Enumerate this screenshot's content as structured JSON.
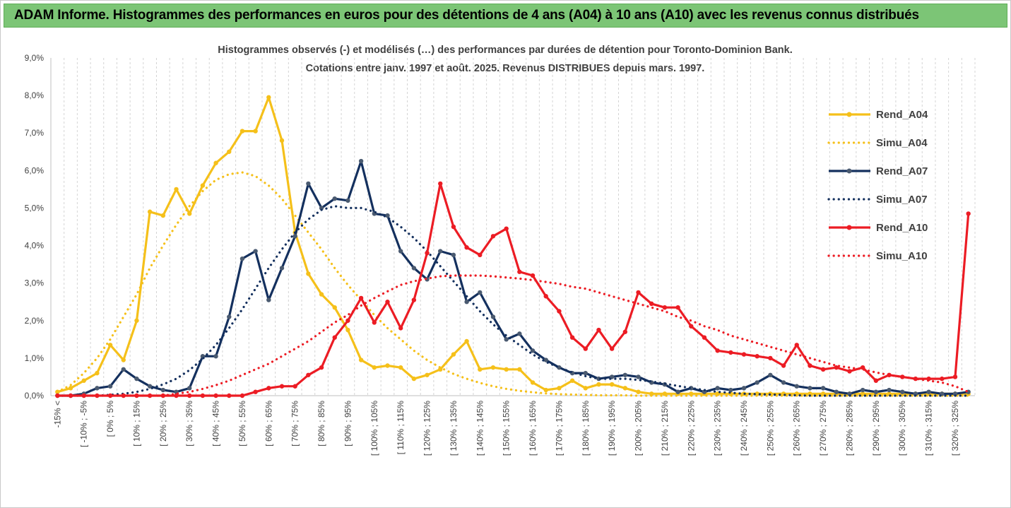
{
  "banner": {
    "title": "ADAM Informe. Histogrammes des performances en euros pour des détentions de 4 ans (A04) à 10 ans (A10) avec les revenus connus distribués"
  },
  "chart_data": {
    "type": "line",
    "subtitle_line1": "Histogrammes observés (-) et modélisés (…) des performances par durées de détention pour Toronto-Dominion Bank.",
    "subtitle_line2": "Cotations entre janv. 1997 et août. 2025. Revenus DISTRIBUES depuis mars. 1997.",
    "ylim": [
      0,
      9
    ],
    "y_unit": "%",
    "y_ticks": [
      "0,0%",
      "1,0%",
      "2,0%",
      "3,0%",
      "4,0%",
      "5,0%",
      "6,0%",
      "7,0%",
      "8,0%",
      "9,0%"
    ],
    "x_tick_labels": [
      "-15% <",
      "[ -10% ; -5%",
      "[ 0% ; 5%",
      "[ 10% ; 15%",
      "[ 20% ; 25%",
      "[ 30% ; 35%",
      "[ 40% ; 45%",
      "[ 50% ; 55%",
      "[ 60% ; 65%",
      "[ 70% ; 75%",
      "[ 80% ; 85%",
      "[ 90% ; 95%",
      "[ 100% ; 105%",
      "[ 110% ; 115%",
      "[ 120% ; 125%",
      "[ 130% ; 135%",
      "[ 140% ; 145%",
      "[ 150% ; 155%",
      "[ 160% ; 165%",
      "[ 170% ; 175%",
      "[ 180% ; 185%",
      "[ 190% ; 195%",
      "[ 200% ; 205%",
      "[ 210% ; 215%",
      "[ 220% ; 225%",
      "[ 230% ; 235%",
      "[ 240% ; 245%",
      "[ 250% ; 255%",
      "[ 260% ; 265%",
      "[ 270% ; 275%",
      "[ 280% ; 285%",
      "[ 290% ; 295%",
      "[ 300% ; 305%",
      "[ 310% ; 315%",
      "[ 320% ; 325%"
    ],
    "category_count": 70,
    "grid": "vertical dashed",
    "legend_position": "right",
    "series": [
      {
        "name": "Rend_A04",
        "style": "solid",
        "markers": true,
        "color": "#f5c01a",
        "values": [
          0.1,
          0.2,
          0.4,
          0.6,
          1.35,
          0.95,
          2.0,
          4.9,
          4.8,
          5.5,
          4.85,
          5.6,
          6.2,
          6.5,
          7.05,
          7.05,
          7.95,
          6.8,
          4.35,
          3.25,
          2.7,
          2.35,
          1.75,
          0.95,
          0.75,
          0.8,
          0.75,
          0.45,
          0.55,
          0.7,
          1.1,
          1.45,
          0.7,
          0.75,
          0.7,
          0.7,
          0.35,
          0.15,
          0.2,
          0.4,
          0.2,
          0.3,
          0.3,
          0.2,
          0.1,
          0.05,
          0.05,
          0.05,
          0.05,
          0.05,
          0.05,
          0.05,
          0.05,
          0.05,
          0.05,
          0.05,
          0.05,
          0.05,
          0.05,
          0.05,
          0.05,
          0.05,
          0.05,
          0.05,
          0.05,
          0.05,
          0.05,
          0.05,
          0.05,
          0.05
        ]
      },
      {
        "name": "Simu_A04",
        "style": "dotted",
        "markers": false,
        "color": "#f5c01a",
        "values": [
          0.1,
          0.28,
          0.6,
          1.0,
          1.5,
          2.1,
          2.7,
          3.4,
          4.0,
          4.55,
          5.05,
          5.45,
          5.75,
          5.9,
          5.95,
          5.85,
          5.6,
          5.25,
          4.8,
          4.35,
          3.9,
          3.4,
          2.95,
          2.55,
          2.15,
          1.8,
          1.5,
          1.2,
          0.95,
          0.75,
          0.58,
          0.45,
          0.34,
          0.25,
          0.18,
          0.13,
          0.09,
          0.06,
          0.04,
          0.03,
          0.02,
          0.01,
          0.01,
          0.01,
          0.0,
          0.0,
          0.0,
          0.0,
          0.0,
          0.0,
          0.0,
          0.0,
          0.0,
          0.0,
          0.0,
          0.0,
          0.0,
          0.0,
          0.0,
          0.0,
          0.0,
          0.0,
          0.0,
          0.0,
          0.0,
          0.0,
          0.0,
          0.0,
          0.0,
          0.0
        ]
      },
      {
        "name": "Rend_A07",
        "style": "solid",
        "markers": true,
        "color": "#14305e",
        "values": [
          0.0,
          0.0,
          0.05,
          0.2,
          0.25,
          0.7,
          0.45,
          0.25,
          0.15,
          0.1,
          0.2,
          1.05,
          1.05,
          2.1,
          3.65,
          3.85,
          2.55,
          3.4,
          4.25,
          5.65,
          5.0,
          5.25,
          5.2,
          6.25,
          4.85,
          4.8,
          3.85,
          3.4,
          3.1,
          3.85,
          3.75,
          2.5,
          2.75,
          2.1,
          1.5,
          1.65,
          1.2,
          0.95,
          0.75,
          0.6,
          0.6,
          0.45,
          0.5,
          0.55,
          0.5,
          0.35,
          0.3,
          0.1,
          0.2,
          0.1,
          0.2,
          0.15,
          0.2,
          0.35,
          0.55,
          0.35,
          0.25,
          0.2,
          0.2,
          0.1,
          0.05,
          0.15,
          0.1,
          0.15,
          0.1,
          0.05,
          0.1,
          0.05,
          0.05,
          0.1
        ]
      },
      {
        "name": "Simu_A07",
        "style": "dotted",
        "markers": false,
        "color": "#14305e",
        "values": [
          0.0,
          0.0,
          0.0,
          0.0,
          0.02,
          0.05,
          0.1,
          0.18,
          0.3,
          0.45,
          0.68,
          0.98,
          1.35,
          1.8,
          2.3,
          2.85,
          3.4,
          3.9,
          4.35,
          4.7,
          4.95,
          5.05,
          5.0,
          5.0,
          4.9,
          4.75,
          4.5,
          4.2,
          3.85,
          3.45,
          3.05,
          2.65,
          2.25,
          1.9,
          1.6,
          1.35,
          1.1,
          0.9,
          0.75,
          0.62,
          0.52,
          0.45,
          0.45,
          0.45,
          0.42,
          0.38,
          0.32,
          0.26,
          0.2,
          0.15,
          0.1,
          0.08,
          0.05,
          0.04,
          0.03,
          0.02,
          0.01,
          0.0,
          0.0,
          0.0,
          0.0,
          0.0,
          0.0,
          0.0,
          0.0,
          0.0,
          0.0,
          0.0,
          0.0,
          0.0
        ]
      },
      {
        "name": "Rend_A10",
        "style": "solid",
        "markers": true,
        "color": "#ec1c24",
        "values": [
          0.0,
          0.0,
          0.0,
          0.0,
          0.0,
          0.0,
          0.0,
          0.0,
          0.0,
          0.0,
          0.0,
          0.0,
          0.0,
          0.0,
          0.0,
          0.1,
          0.2,
          0.25,
          0.25,
          0.55,
          0.75,
          1.55,
          2.0,
          2.6,
          1.95,
          2.5,
          1.8,
          2.55,
          3.8,
          5.65,
          4.5,
          3.95,
          3.75,
          4.25,
          4.45,
          3.3,
          3.2,
          2.65,
          2.25,
          1.55,
          1.25,
          1.75,
          1.25,
          1.7,
          2.75,
          2.45,
          2.35,
          2.35,
          1.85,
          1.55,
          1.2,
          1.15,
          1.1,
          1.05,
          1.0,
          0.8,
          1.35,
          0.8,
          0.7,
          0.75,
          0.65,
          0.75,
          0.4,
          0.55,
          0.5,
          0.45,
          0.45,
          0.45,
          0.5,
          4.85
        ]
      },
      {
        "name": "Simu_A10",
        "style": "dotted",
        "markers": false,
        "color": "#ec1c24",
        "values": [
          0.0,
          0.0,
          0.0,
          0.0,
          0.0,
          0.0,
          0.0,
          0.0,
          0.0,
          0.05,
          0.1,
          0.18,
          0.28,
          0.4,
          0.55,
          0.7,
          0.85,
          1.05,
          1.25,
          1.45,
          1.7,
          1.95,
          2.15,
          2.4,
          2.6,
          2.78,
          2.95,
          3.05,
          3.12,
          3.18,
          3.2,
          3.2,
          3.2,
          3.18,
          3.15,
          3.12,
          3.08,
          3.03,
          2.98,
          2.9,
          2.85,
          2.75,
          2.65,
          2.55,
          2.45,
          2.35,
          2.25,
          2.1,
          2.0,
          1.85,
          1.75,
          1.6,
          1.5,
          1.4,
          1.3,
          1.2,
          1.1,
          1.0,
          0.9,
          0.8,
          0.75,
          0.7,
          0.62,
          0.55,
          0.5,
          0.45,
          0.4,
          0.35,
          0.25,
          0.1
        ]
      }
    ]
  }
}
